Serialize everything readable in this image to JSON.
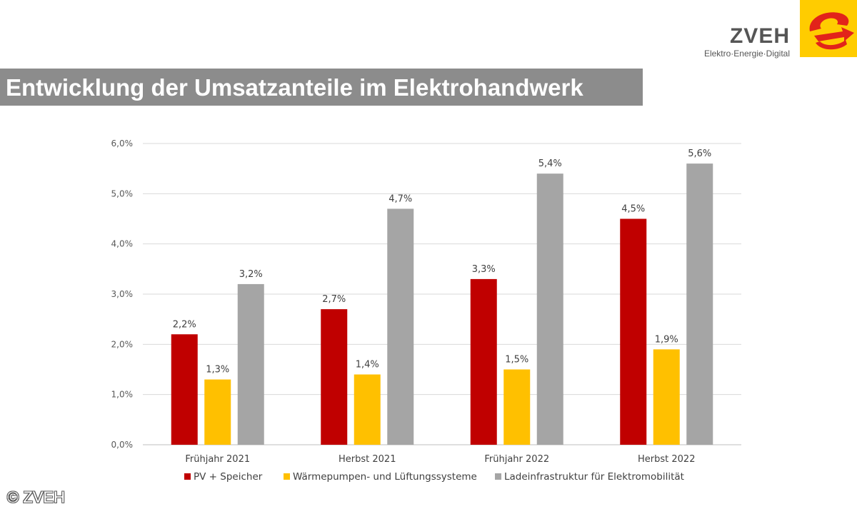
{
  "header": {
    "logo_name": "ZVEH",
    "logo_tagline": "Elektro·Energie·Digital",
    "logo_colors": {
      "badge": "#ffcc00",
      "swoosh": "#e2231a"
    },
    "title": "Entwicklung der Umsatzanteile im Elektrohandwerk"
  },
  "footer": {
    "copyright": "© ZVEH"
  },
  "chart_data": {
    "type": "bar",
    "categories": [
      "Frühjahr 2021",
      "Herbst 2021",
      "Frühjahr 2022",
      "Herbst 2022"
    ],
    "series": [
      {
        "name": "PV + Speicher",
        "color": "#c00000",
        "values": [
          2.2,
          2.7,
          3.3,
          4.5
        ],
        "labels": [
          "2,2%",
          "2,7%",
          "3,3%",
          "4,5%"
        ]
      },
      {
        "name": "Wärmepumpen- und Lüftungssysteme",
        "color": "#ffc000",
        "values": [
          1.3,
          1.4,
          1.5,
          1.9
        ],
        "labels": [
          "1,3%",
          "1,4%",
          "1,5%",
          "1,9%"
        ]
      },
      {
        "name": "Ladeinfrastruktur für Elektromobilität",
        "color": "#a5a5a5",
        "values": [
          3.2,
          4.7,
          5.4,
          5.6
        ],
        "labels": [
          "3,2%",
          "4,7%",
          "5,4%",
          "5,6%"
        ]
      }
    ],
    "ylim": [
      0,
      6
    ],
    "yticks": [
      {
        "value": 0,
        "label": "0,0%"
      },
      {
        "value": 1,
        "label": "1,0%"
      },
      {
        "value": 2,
        "label": "2,0%"
      },
      {
        "value": 3,
        "label": "3,0%"
      },
      {
        "value": 4,
        "label": "4,0%"
      },
      {
        "value": 5,
        "label": "5,0%"
      },
      {
        "value": 6,
        "label": "6,0%"
      }
    ],
    "grid": true,
    "legend_position": "bottom",
    "xlabel": "",
    "ylabel": "",
    "title": ""
  }
}
